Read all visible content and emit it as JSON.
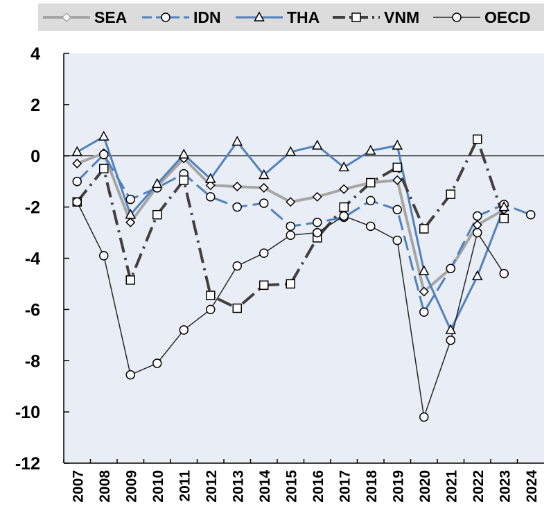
{
  "chart_data": {
    "type": "line",
    "categories": [
      "2007",
      "2008",
      "2009",
      "2010",
      "2011",
      "2012",
      "2013",
      "2014",
      "2015",
      "2016",
      "2017",
      "2018",
      "2019",
      "2020",
      "2021",
      "2022",
      "2023",
      "2024"
    ],
    "ylim": [
      -12,
      4
    ],
    "yticks": [
      4,
      2,
      0,
      -2,
      -4,
      -6,
      -8,
      -10,
      -12
    ],
    "series": [
      {
        "name": "SEA",
        "color": "#a6a6a6",
        "marker": "diamond",
        "dash": "solid",
        "width": 4,
        "values": [
          -0.3,
          0.1,
          -2.6,
          -1.2,
          -0.1,
          -1.15,
          -1.2,
          -1.25,
          -1.8,
          -1.6,
          -1.3,
          -1.05,
          -0.95,
          -5.3,
          -4.4,
          -2.7,
          -2.1,
          null
        ]
      },
      {
        "name": "IDN",
        "color": "#4f81bd",
        "marker": "circle",
        "dash": "dashed",
        "width": 3,
        "values": [
          -1.0,
          0.05,
          -1.7,
          -1.25,
          -0.7,
          -1.6,
          -2.0,
          -1.85,
          -2.75,
          -2.6,
          -2.4,
          -1.75,
          -2.1,
          -6.1,
          -4.4,
          -2.35,
          -1.9,
          -2.3
        ]
      },
      {
        "name": "THA",
        "color": "#4f81bd",
        "marker": "triangle",
        "dash": "solid",
        "width": 3,
        "values": [
          0.15,
          0.75,
          -2.3,
          -1.1,
          0.05,
          -0.9,
          0.55,
          -0.75,
          0.15,
          0.4,
          -0.45,
          0.2,
          0.4,
          -4.5,
          -6.8,
          -4.7,
          -2.0,
          null
        ]
      },
      {
        "name": "VNM",
        "color": "#404040",
        "marker": "square",
        "dash": "dashdot",
        "width": 4,
        "values": [
          -1.8,
          -0.5,
          -4.85,
          -2.3,
          -0.95,
          -5.45,
          -5.95,
          -5.05,
          -5.0,
          -3.2,
          -2.0,
          -1.05,
          -0.45,
          -2.85,
          -1.5,
          0.65,
          -2.45,
          null
        ]
      },
      {
        "name": "OECD",
        "color": "#262626",
        "marker": "circle",
        "dash": "solid",
        "width": 1.5,
        "values": [
          -1.8,
          -3.9,
          -8.55,
          -8.1,
          -6.8,
          -6.0,
          -4.3,
          -3.8,
          -3.1,
          -3.0,
          -2.35,
          -2.75,
          -3.3,
          -10.2,
          -7.2,
          -3.0,
          -4.6,
          null
        ]
      }
    ]
  }
}
